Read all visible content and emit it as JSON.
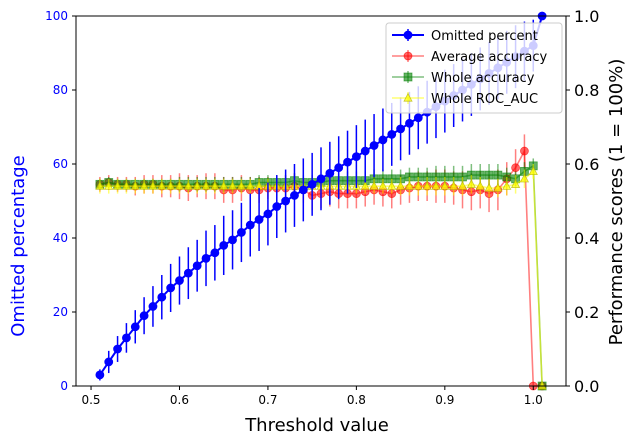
{
  "colors": {
    "omitted": "#0000ff",
    "avg_acc": "#ff0000",
    "whole_acc": "#008000",
    "roc": "#ffff00",
    "roc_edge": "#b0b000",
    "left_axis_label": "#0000ff",
    "left_ticks": "#0000ff"
  },
  "chart_data": {
    "type": "line",
    "xlabel": "Threshold value",
    "ylabel_left": "Omitted percentage",
    "ylabel_right": "Performance scores (1 = 100%)",
    "xlim": [
      0.483,
      1.037
    ],
    "ylim_left": [
      0,
      100
    ],
    "ylim_right": [
      0.0,
      1.0
    ],
    "x_ticks": [
      0.5,
      0.6,
      0.7,
      0.8,
      0.9,
      1.0
    ],
    "x_tick_labels": [
      "0.5",
      "0.6",
      "0.7",
      "0.8",
      "0.9",
      "1.0"
    ],
    "y_left_ticks": [
      0,
      20,
      40,
      60,
      80,
      100
    ],
    "y_left_tick_labels": [
      "0",
      "20",
      "40",
      "60",
      "80",
      "100"
    ],
    "y_right_ticks": [
      0.0,
      0.2,
      0.4,
      0.6,
      0.8,
      1.0
    ],
    "y_right_tick_labels": [
      "0.0",
      "0.2",
      "0.4",
      "0.6",
      "0.8",
      "1.0"
    ],
    "legend_position": "top-right",
    "x": [
      0.51,
      0.52,
      0.53,
      0.54,
      0.55,
      0.56,
      0.57,
      0.58,
      0.59,
      0.6,
      0.61,
      0.62,
      0.63,
      0.64,
      0.65,
      0.66,
      0.67,
      0.68,
      0.69,
      0.7,
      0.71,
      0.72,
      0.73,
      0.74,
      0.75,
      0.76,
      0.77,
      0.78,
      0.79,
      0.8,
      0.81,
      0.82,
      0.83,
      0.84,
      0.85,
      0.86,
      0.87,
      0.88,
      0.89,
      0.9,
      0.91,
      0.92,
      0.93,
      0.94,
      0.95,
      0.96,
      0.97,
      0.98,
      0.99,
      1.0,
      1.01
    ],
    "series": [
      {
        "name": "Omitted percent",
        "axis": "left",
        "marker": "circle",
        "values": [
          3,
          6.5,
          10,
          13,
          16,
          19,
          21.5,
          24,
          26.5,
          28.5,
          30.5,
          32.5,
          34.5,
          36,
          38,
          39.5,
          41.5,
          43.5,
          45,
          46.5,
          48.5,
          50,
          51.5,
          53,
          54.5,
          56,
          57.5,
          59,
          60.5,
          62,
          63.5,
          65,
          66.5,
          68,
          69.5,
          71,
          72.5,
          74,
          75.5,
          77,
          78.5,
          80,
          81.5,
          83,
          84.5,
          86,
          87.5,
          89,
          90.5,
          92,
          100
        ],
        "errors": [
          1.5,
          3,
          3.5,
          4,
          4.5,
          5,
          5.5,
          6,
          6.5,
          6.5,
          7,
          7,
          7.5,
          7.5,
          8,
          8,
          8,
          8.5,
          8.5,
          8.5,
          8.5,
          8.5,
          8.5,
          8.5,
          8.5,
          8.5,
          8.5,
          8.5,
          8.5,
          8.5,
          8.5,
          8.5,
          8.5,
          8.5,
          8.5,
          8.5,
          8.5,
          8.5,
          8.5,
          8.5,
          8.5,
          8.5,
          8.5,
          8.5,
          8.5,
          8.5,
          8.5,
          8.5,
          8,
          7,
          0
        ]
      },
      {
        "name": "Average accuracy",
        "axis": "right",
        "marker": "circle",
        "values": [
          0.545,
          0.55,
          0.545,
          0.545,
          0.54,
          0.545,
          0.545,
          0.54,
          0.54,
          0.54,
          0.535,
          0.54,
          0.54,
          0.54,
          0.53,
          0.53,
          0.535,
          0.53,
          0.53,
          0.535,
          0.535,
          0.535,
          0.54,
          0.53,
          0.515,
          0.52,
          0.525,
          0.52,
          0.52,
          0.52,
          0.525,
          0.53,
          0.525,
          0.52,
          0.53,
          0.535,
          0.54,
          0.54,
          0.54,
          0.54,
          0.535,
          0.53,
          0.525,
          0.53,
          0.52,
          0.53,
          0.56,
          0.59,
          0.635,
          0.0,
          0.0
        ],
        "errors": [
          0.02,
          0.02,
          0.02,
          0.02,
          0.025,
          0.025,
          0.025,
          0.03,
          0.03,
          0.035,
          0.035,
          0.03,
          0.035,
          0.035,
          0.035,
          0.035,
          0.035,
          0.035,
          0.035,
          0.03,
          0.035,
          0.035,
          0.035,
          0.035,
          0.04,
          0.04,
          0.04,
          0.04,
          0.04,
          0.04,
          0.04,
          0.04,
          0.04,
          0.04,
          0.04,
          0.04,
          0.04,
          0.04,
          0.045,
          0.045,
          0.045,
          0.05,
          0.05,
          0.05,
          0.05,
          0.055,
          0.045,
          0.05,
          0.045,
          0,
          0
        ]
      },
      {
        "name": "Whole accuracy",
        "axis": "right",
        "marker": "square",
        "values": [
          0.545,
          0.55,
          0.545,
          0.545,
          0.545,
          0.545,
          0.545,
          0.545,
          0.545,
          0.545,
          0.545,
          0.545,
          0.545,
          0.545,
          0.545,
          0.545,
          0.545,
          0.545,
          0.55,
          0.55,
          0.55,
          0.55,
          0.555,
          0.55,
          0.55,
          0.55,
          0.555,
          0.555,
          0.555,
          0.555,
          0.555,
          0.56,
          0.56,
          0.56,
          0.56,
          0.565,
          0.565,
          0.565,
          0.565,
          0.565,
          0.565,
          0.565,
          0.57,
          0.57,
          0.57,
          0.57,
          0.565,
          0.56,
          0.58,
          0.595,
          0.0
        ],
        "errors": [
          0.015,
          0.015,
          0.015,
          0.015,
          0.015,
          0.015,
          0.015,
          0.015,
          0.015,
          0.02,
          0.02,
          0.02,
          0.02,
          0.02,
          0.02,
          0.02,
          0.02,
          0.02,
          0.02,
          0.02,
          0.02,
          0.02,
          0.02,
          0.02,
          0.02,
          0.02,
          0.02,
          0.02,
          0.025,
          0.025,
          0.025,
          0.025,
          0.025,
          0.025,
          0.025,
          0.025,
          0.025,
          0.025,
          0.03,
          0.03,
          0.03,
          0.03,
          0.03,
          0.03,
          0.03,
          0.03,
          0.025,
          0.02,
          0.025,
          0.02,
          0
        ]
      },
      {
        "name": "Whole ROC_AUC",
        "axis": "right",
        "marker": "triangle",
        "values": [
          0.54,
          0.54,
          0.54,
          0.54,
          0.54,
          0.54,
          0.54,
          0.54,
          0.54,
          0.54,
          0.54,
          0.54,
          0.54,
          0.54,
          0.54,
          0.54,
          0.54,
          0.54,
          0.54,
          0.54,
          0.54,
          0.54,
          0.54,
          0.54,
          0.54,
          0.54,
          0.54,
          0.54,
          0.54,
          0.54,
          0.54,
          0.54,
          0.54,
          0.54,
          0.54,
          0.54,
          0.54,
          0.54,
          0.54,
          0.54,
          0.54,
          0.54,
          0.545,
          0.54,
          0.535,
          0.535,
          0.54,
          0.545,
          0.56,
          0.58,
          0.0
        ],
        "errors": [
          0.02,
          0.02,
          0.02,
          0.02,
          0.02,
          0.02,
          0.02,
          0.02,
          0.02,
          0.02,
          0.02,
          0.02,
          0.02,
          0.02,
          0.02,
          0.02,
          0.02,
          0.02,
          0.02,
          0.02,
          0.02,
          0.02,
          0.02,
          0.02,
          0.02,
          0.02,
          0.02,
          0.02,
          0.02,
          0.02,
          0.02,
          0.02,
          0.02,
          0.02,
          0.025,
          0.025,
          0.025,
          0.025,
          0.025,
          0.025,
          0.025,
          0.025,
          0.025,
          0.025,
          0.025,
          0.025,
          0.025,
          0.025,
          0.025,
          0.02,
          0
        ]
      }
    ]
  }
}
